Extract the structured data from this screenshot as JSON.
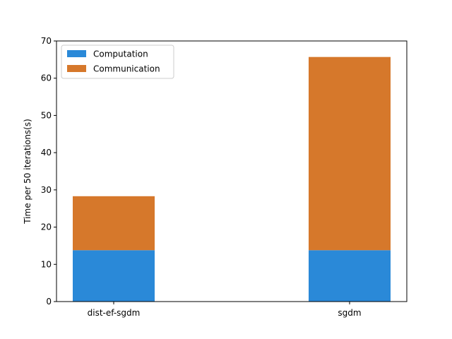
{
  "chart_data": {
    "type": "bar",
    "stacked": true,
    "title": "",
    "xlabel": "",
    "ylabel": "Time per 50 iterations(s)",
    "categories": [
      "dist-ef-sgdm",
      "sgdm"
    ],
    "series": [
      {
        "name": "Computation",
        "values": [
          13.8,
          13.8
        ],
        "color": "#2a89d8"
      },
      {
        "name": "Communication",
        "values": [
          14.5,
          51.9
        ],
        "color": "#d6782b"
      }
    ],
    "ylim": [
      0,
      70
    ],
    "yticks": [
      0,
      10,
      20,
      30,
      40,
      50,
      60,
      70
    ],
    "grid": false,
    "legend_position": "top-left"
  }
}
